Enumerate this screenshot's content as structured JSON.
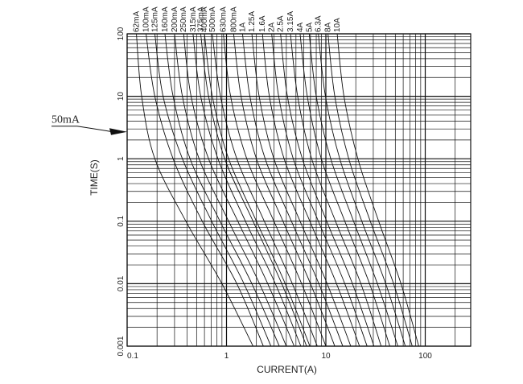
{
  "chart_data": {
    "type": "line",
    "title": "",
    "xlabel": "CURRENT(A)",
    "ylabel": "TIME(S)",
    "x_scale": "log",
    "y_scale": "log",
    "xlim": [
      0.1,
      200
    ],
    "ylim": [
      0.001,
      100
    ],
    "grid": true,
    "x_tick_labels": [
      {
        "value": 0.1,
        "label": "0.1"
      },
      {
        "value": 1,
        "label": "1"
      },
      {
        "value": 10,
        "label": "10"
      },
      {
        "value": 100,
        "label": "100"
      }
    ],
    "y_tick_labels": [
      {
        "value": 0.001,
        "label": "0.001"
      },
      {
        "value": 0.01,
        "label": "0.01"
      },
      {
        "value": 0.1,
        "label": "0.1"
      },
      {
        "value": 1,
        "label": "1"
      },
      {
        "value": 10,
        "label": "10"
      },
      {
        "value": 100,
        "label": "100"
      }
    ],
    "annotations": [
      {
        "text": "50mA",
        "points_to": {
          "x": 0.1,
          "y": 2.7
        }
      }
    ],
    "series": [
      {
        "name": "62mA",
        "values": [
          [
            0.124,
            100
          ],
          [
            0.14,
            10
          ],
          [
            0.19,
            1
          ],
          [
            0.39,
            0.1
          ],
          [
            0.9,
            0.01
          ],
          [
            1.85,
            0.001
          ]
        ]
      },
      {
        "name": "100mA",
        "values": [
          [
            0.155,
            100
          ],
          [
            0.19,
            10
          ],
          [
            0.29,
            1
          ],
          [
            0.57,
            0.1
          ],
          [
            1.27,
            0.01
          ],
          [
            2.35,
            0.001
          ]
        ]
      },
      {
        "name": "125mA",
        "values": [
          [
            0.19,
            100
          ],
          [
            0.23,
            10
          ],
          [
            0.36,
            1
          ],
          [
            0.71,
            0.1
          ],
          [
            1.5,
            0.01
          ],
          [
            2.8,
            0.001
          ]
        ]
      },
      {
        "name": "160mA",
        "values": [
          [
            0.24,
            100
          ],
          [
            0.29,
            10
          ],
          [
            0.43,
            1
          ],
          [
            0.86,
            0.1
          ],
          [
            1.8,
            0.01
          ],
          [
            3.4,
            0.001
          ]
        ]
      },
      {
        "name": "200mA",
        "values": [
          [
            0.3,
            100
          ],
          [
            0.36,
            10
          ],
          [
            0.53,
            1
          ],
          [
            1.05,
            0.1
          ],
          [
            2.15,
            0.01
          ],
          [
            4.0,
            0.001
          ]
        ]
      },
      {
        "name": "250mA",
        "values": [
          [
            0.37,
            100
          ],
          [
            0.44,
            10
          ],
          [
            0.66,
            1
          ],
          [
            1.3,
            0.1
          ],
          [
            2.6,
            0.01
          ],
          [
            4.8,
            0.001
          ]
        ]
      },
      {
        "name": "315mA",
        "values": [
          [
            0.46,
            100
          ],
          [
            0.55,
            10
          ],
          [
            0.82,
            1
          ],
          [
            1.55,
            0.1
          ],
          [
            3.1,
            0.01
          ],
          [
            5.6,
            0.001
          ]
        ]
      },
      {
        "name": "375mA",
        "values": [
          [
            0.55,
            100
          ],
          [
            0.66,
            10
          ],
          [
            0.96,
            1
          ],
          [
            1.85,
            0.1
          ],
          [
            3.6,
            0.01
          ],
          [
            6.4,
            0.001
          ]
        ]
      },
      {
        "name": "400mA",
        "values": [
          [
            0.6,
            100
          ],
          [
            0.72,
            10
          ],
          [
            1.05,
            1
          ],
          [
            2.0,
            0.1
          ],
          [
            3.9,
            0.01
          ],
          [
            6.9,
            0.001
          ]
        ]
      },
      {
        "name": "500mA",
        "values": [
          [
            0.72,
            100
          ],
          [
            0.87,
            10
          ],
          [
            1.27,
            1
          ],
          [
            2.4,
            0.1
          ],
          [
            4.6,
            0.01
          ],
          [
            8.2,
            0.001
          ]
        ]
      },
      {
        "name": "630mA",
        "values": [
          [
            0.93,
            100
          ],
          [
            1.1,
            10
          ],
          [
            1.6,
            1
          ],
          [
            3.0,
            0.1
          ],
          [
            5.7,
            0.01
          ],
          [
            10,
            0.001
          ]
        ]
      },
      {
        "name": "800mA",
        "values": [
          [
            1.18,
            100
          ],
          [
            1.4,
            10
          ],
          [
            2.0,
            1
          ],
          [
            3.7,
            0.1
          ],
          [
            7.0,
            0.01
          ],
          [
            12.3,
            0.001
          ]
        ]
      },
      {
        "name": "1A",
        "values": [
          [
            1.45,
            100
          ],
          [
            1.72,
            10
          ],
          [
            2.45,
            1
          ],
          [
            4.5,
            0.1
          ],
          [
            8.5,
            0.01
          ],
          [
            14.8,
            0.001
          ]
        ]
      },
      {
        "name": "1.25A",
        "values": [
          [
            1.8,
            100
          ],
          [
            2.13,
            10
          ],
          [
            3.0,
            1
          ],
          [
            5.5,
            0.1
          ],
          [
            10.3,
            0.01
          ],
          [
            17.8,
            0.001
          ]
        ]
      },
      {
        "name": "1.6A",
        "values": [
          [
            2.3,
            100
          ],
          [
            2.7,
            10
          ],
          [
            3.8,
            1
          ],
          [
            6.9,
            0.1
          ],
          [
            12.8,
            0.01
          ],
          [
            21.8,
            0.001
          ]
        ]
      },
      {
        "name": "2A",
        "values": [
          [
            2.85,
            100
          ],
          [
            3.35,
            10
          ],
          [
            4.7,
            1
          ],
          [
            8.4,
            0.1
          ],
          [
            15.5,
            0.01
          ],
          [
            26,
            0.001
          ]
        ]
      },
      {
        "name": "2.5A",
        "values": [
          [
            3.5,
            100
          ],
          [
            4.1,
            10
          ],
          [
            5.8,
            1
          ],
          [
            10.2,
            0.1
          ],
          [
            18.5,
            0.01
          ],
          [
            30.5,
            0.001
          ]
        ]
      },
      {
        "name": "3.15A",
        "values": [
          [
            4.4,
            100
          ],
          [
            5.2,
            10
          ],
          [
            7.2,
            1
          ],
          [
            12.5,
            0.1
          ],
          [
            22.5,
            0.01
          ],
          [
            36,
            0.001
          ]
        ]
      },
      {
        "name": "4A",
        "values": [
          [
            5.5,
            100
          ],
          [
            6.5,
            10
          ],
          [
            9.0,
            1
          ],
          [
            15.5,
            0.1
          ],
          [
            27.5,
            0.01
          ],
          [
            44,
            0.001
          ]
        ]
      },
      {
        "name": "5A",
        "values": [
          [
            6.8,
            100
          ],
          [
            8.0,
            10
          ],
          [
            11.2,
            1
          ],
          [
            19,
            0.1
          ],
          [
            33,
            0.01
          ],
          [
            53,
            0.001
          ]
        ]
      },
      {
        "name": "6.3A",
        "values": [
          [
            8.4,
            100
          ],
          [
            9.9,
            10
          ],
          [
            13.8,
            1
          ],
          [
            23,
            0.1
          ],
          [
            40,
            0.01
          ],
          [
            63,
            0.001
          ]
        ]
      },
      {
        "name": "8A",
        "values": [
          [
            10.5,
            100
          ],
          [
            12.3,
            10
          ],
          [
            17,
            1
          ],
          [
            28,
            0.1
          ],
          [
            48,
            0.01
          ],
          [
            74,
            0.001
          ]
        ]
      },
      {
        "name": "10A",
        "values": [
          [
            13,
            100
          ],
          [
            15.2,
            10
          ],
          [
            21,
            1
          ],
          [
            34,
            0.1
          ],
          [
            57,
            0.01
          ],
          [
            86,
            0.001
          ]
        ]
      }
    ]
  }
}
